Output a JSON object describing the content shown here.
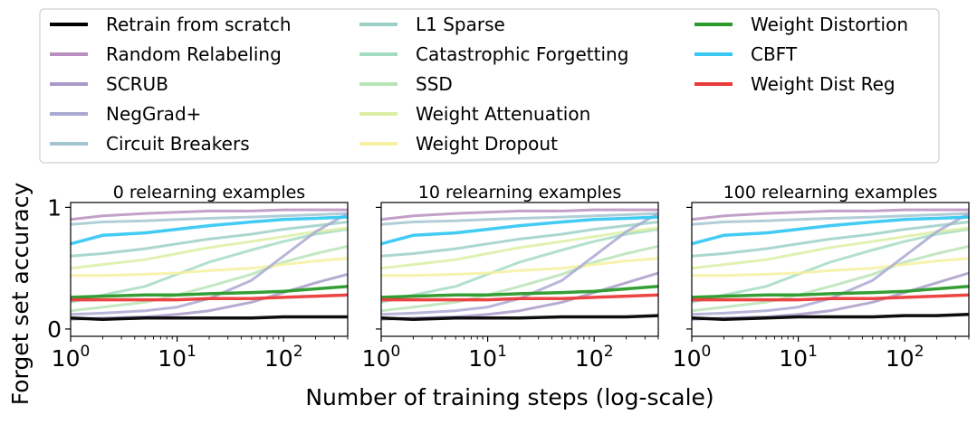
{
  "figure": {
    "ylabel": "Forget set accuracy",
    "xlabel": "Number of training steps (log-scale)"
  },
  "legend": {
    "columns": 3,
    "entries": [
      {
        "name": "Retrain from scratch",
        "color": "#000000"
      },
      {
        "name": "Random Relabeling",
        "color": "#b98fbf"
      },
      {
        "name": "SCRUB",
        "color": "#a99bc9"
      },
      {
        "name": "NegGrad+",
        "color": "#aaa9d2"
      },
      {
        "name": "Circuit Breakers",
        "color": "#a3c5d0"
      },
      {
        "name": "L1 Sparse",
        "color": "#9bd0c6"
      },
      {
        "name": "Catastrophic Forgetting",
        "color": "#a4dcc2"
      },
      {
        "name": "SSD",
        "color": "#b9e4b6"
      },
      {
        "name": "Weight Attenuation",
        "color": "#dbeea4"
      },
      {
        "name": "Weight Dropout",
        "color": "#f6f1a0"
      },
      {
        "name": "Weight Distortion",
        "color": "#2a9a2a"
      },
      {
        "name": "CBFT",
        "color": "#38c8f2"
      },
      {
        "name": "Weight Dist Reg",
        "color": "#ec3a3a"
      }
    ]
  },
  "chart_data": [
    {
      "type": "line",
      "title": "0 relearning examples",
      "x_scale": "log",
      "xlim": [
        1,
        400
      ],
      "ylim": [
        0,
        1
      ],
      "x_ticks": [
        "10^0",
        "10^1",
        "10^2"
      ],
      "y_ticks": [
        "0",
        "1"
      ],
      "x": [
        1,
        2,
        5,
        10,
        20,
        50,
        100,
        200,
        400
      ],
      "series": [
        {
          "name": "Retrain from scratch",
          "values": [
            0.09,
            0.08,
            0.09,
            0.09,
            0.09,
            0.09,
            0.1,
            0.1,
            0.1
          ]
        },
        {
          "name": "Random Relabeling",
          "values": [
            0.9,
            0.93,
            0.95,
            0.96,
            0.97,
            0.97,
            0.98,
            0.98,
            0.98
          ]
        },
        {
          "name": "SCRUB",
          "values": [
            0.08,
            0.09,
            0.1,
            0.12,
            0.15,
            0.22,
            0.3,
            0.38,
            0.45
          ]
        },
        {
          "name": "NegGrad+",
          "values": [
            0.12,
            0.13,
            0.15,
            0.18,
            0.25,
            0.4,
            0.6,
            0.8,
            0.95
          ]
        },
        {
          "name": "Circuit Breakers",
          "values": [
            0.86,
            0.88,
            0.89,
            0.9,
            0.91,
            0.92,
            0.93,
            0.94,
            0.95
          ]
        },
        {
          "name": "L1 Sparse",
          "values": [
            0.6,
            0.62,
            0.66,
            0.7,
            0.74,
            0.78,
            0.82,
            0.85,
            0.88
          ]
        },
        {
          "name": "Catastrophic Forgetting",
          "values": [
            0.22,
            0.28,
            0.35,
            0.45,
            0.55,
            0.65,
            0.72,
            0.78,
            0.82
          ]
        },
        {
          "name": "SSD",
          "values": [
            0.15,
            0.18,
            0.22,
            0.28,
            0.35,
            0.45,
            0.55,
            0.62,
            0.68
          ]
        },
        {
          "name": "Weight Attenuation",
          "values": [
            0.5,
            0.53,
            0.57,
            0.62,
            0.67,
            0.72,
            0.76,
            0.8,
            0.83
          ]
        },
        {
          "name": "Weight Dropout",
          "values": [
            0.44,
            0.44,
            0.45,
            0.46,
            0.48,
            0.5,
            0.53,
            0.56,
            0.58
          ]
        },
        {
          "name": "Weight Distortion",
          "values": [
            0.26,
            0.27,
            0.28,
            0.28,
            0.29,
            0.3,
            0.31,
            0.33,
            0.35
          ]
        },
        {
          "name": "CBFT",
          "values": [
            0.7,
            0.77,
            0.79,
            0.82,
            0.85,
            0.88,
            0.9,
            0.91,
            0.92
          ]
        },
        {
          "name": "Weight Dist Reg",
          "values": [
            0.24,
            0.24,
            0.24,
            0.24,
            0.25,
            0.25,
            0.26,
            0.27,
            0.28
          ]
        }
      ]
    },
    {
      "type": "line",
      "title": "10 relearning examples",
      "x_scale": "log",
      "xlim": [
        1,
        400
      ],
      "ylim": [
        0,
        1
      ],
      "x_ticks": [
        "10^0",
        "10^1",
        "10^2"
      ],
      "y_ticks": [
        "0",
        "1"
      ],
      "x": [
        1,
        2,
        5,
        10,
        20,
        50,
        100,
        200,
        400
      ],
      "series": [
        {
          "name": "Retrain from scratch",
          "values": [
            0.09,
            0.08,
            0.09,
            0.09,
            0.09,
            0.1,
            0.1,
            0.1,
            0.11
          ]
        },
        {
          "name": "Random Relabeling",
          "values": [
            0.9,
            0.93,
            0.95,
            0.96,
            0.97,
            0.97,
            0.98,
            0.98,
            0.98
          ]
        },
        {
          "name": "SCRUB",
          "values": [
            0.08,
            0.09,
            0.1,
            0.12,
            0.15,
            0.22,
            0.3,
            0.38,
            0.46
          ]
        },
        {
          "name": "NegGrad+",
          "values": [
            0.12,
            0.13,
            0.15,
            0.18,
            0.25,
            0.4,
            0.6,
            0.8,
            0.95
          ]
        },
        {
          "name": "Circuit Breakers",
          "values": [
            0.86,
            0.88,
            0.89,
            0.9,
            0.91,
            0.92,
            0.93,
            0.94,
            0.95
          ]
        },
        {
          "name": "L1 Sparse",
          "values": [
            0.6,
            0.62,
            0.66,
            0.7,
            0.74,
            0.78,
            0.82,
            0.85,
            0.88
          ]
        },
        {
          "name": "Catastrophic Forgetting",
          "values": [
            0.22,
            0.28,
            0.35,
            0.45,
            0.55,
            0.65,
            0.72,
            0.78,
            0.82
          ]
        },
        {
          "name": "SSD",
          "values": [
            0.15,
            0.18,
            0.22,
            0.28,
            0.35,
            0.45,
            0.55,
            0.62,
            0.68
          ]
        },
        {
          "name": "Weight Attenuation",
          "values": [
            0.5,
            0.53,
            0.57,
            0.62,
            0.67,
            0.72,
            0.76,
            0.8,
            0.83
          ]
        },
        {
          "name": "Weight Dropout",
          "values": [
            0.44,
            0.44,
            0.45,
            0.46,
            0.48,
            0.5,
            0.53,
            0.56,
            0.58
          ]
        },
        {
          "name": "Weight Distortion",
          "values": [
            0.26,
            0.27,
            0.28,
            0.28,
            0.29,
            0.3,
            0.31,
            0.33,
            0.35
          ]
        },
        {
          "name": "CBFT",
          "values": [
            0.7,
            0.77,
            0.79,
            0.82,
            0.85,
            0.88,
            0.9,
            0.91,
            0.92
          ]
        },
        {
          "name": "Weight Dist Reg",
          "values": [
            0.24,
            0.24,
            0.24,
            0.24,
            0.25,
            0.25,
            0.26,
            0.27,
            0.28
          ]
        }
      ]
    },
    {
      "type": "line",
      "title": "100 relearning examples",
      "x_scale": "log",
      "xlim": [
        1,
        400
      ],
      "ylim": [
        0,
        1
      ],
      "x_ticks": [
        "10^0",
        "10^1",
        "10^2"
      ],
      "y_ticks": [
        "0",
        "1"
      ],
      "x": [
        1,
        2,
        5,
        10,
        20,
        50,
        100,
        200,
        400
      ],
      "series": [
        {
          "name": "Retrain from scratch",
          "values": [
            0.09,
            0.08,
            0.09,
            0.1,
            0.1,
            0.1,
            0.11,
            0.11,
            0.12
          ]
        },
        {
          "name": "Random Relabeling",
          "values": [
            0.9,
            0.93,
            0.95,
            0.96,
            0.97,
            0.97,
            0.98,
            0.98,
            0.98
          ]
        },
        {
          "name": "SCRUB",
          "values": [
            0.08,
            0.09,
            0.1,
            0.12,
            0.15,
            0.22,
            0.3,
            0.38,
            0.46
          ]
        },
        {
          "name": "NegGrad+",
          "values": [
            0.12,
            0.13,
            0.15,
            0.18,
            0.25,
            0.4,
            0.6,
            0.8,
            0.95
          ]
        },
        {
          "name": "Circuit Breakers",
          "values": [
            0.86,
            0.88,
            0.89,
            0.9,
            0.91,
            0.92,
            0.93,
            0.94,
            0.95
          ]
        },
        {
          "name": "L1 Sparse",
          "values": [
            0.6,
            0.62,
            0.66,
            0.7,
            0.74,
            0.78,
            0.82,
            0.85,
            0.88
          ]
        },
        {
          "name": "Catastrophic Forgetting",
          "values": [
            0.22,
            0.28,
            0.35,
            0.45,
            0.55,
            0.65,
            0.72,
            0.78,
            0.82
          ]
        },
        {
          "name": "SSD",
          "values": [
            0.15,
            0.18,
            0.22,
            0.28,
            0.35,
            0.45,
            0.55,
            0.62,
            0.68
          ]
        },
        {
          "name": "Weight Attenuation",
          "values": [
            0.5,
            0.53,
            0.57,
            0.62,
            0.67,
            0.72,
            0.76,
            0.8,
            0.83
          ]
        },
        {
          "name": "Weight Dropout",
          "values": [
            0.44,
            0.44,
            0.45,
            0.46,
            0.48,
            0.5,
            0.53,
            0.56,
            0.58
          ]
        },
        {
          "name": "Weight Distortion",
          "values": [
            0.26,
            0.27,
            0.28,
            0.28,
            0.29,
            0.3,
            0.31,
            0.33,
            0.35
          ]
        },
        {
          "name": "CBFT",
          "values": [
            0.7,
            0.77,
            0.79,
            0.82,
            0.85,
            0.88,
            0.9,
            0.91,
            0.92
          ]
        },
        {
          "name": "Weight Dist Reg",
          "values": [
            0.24,
            0.24,
            0.24,
            0.24,
            0.25,
            0.25,
            0.26,
            0.27,
            0.28
          ]
        }
      ]
    }
  ]
}
